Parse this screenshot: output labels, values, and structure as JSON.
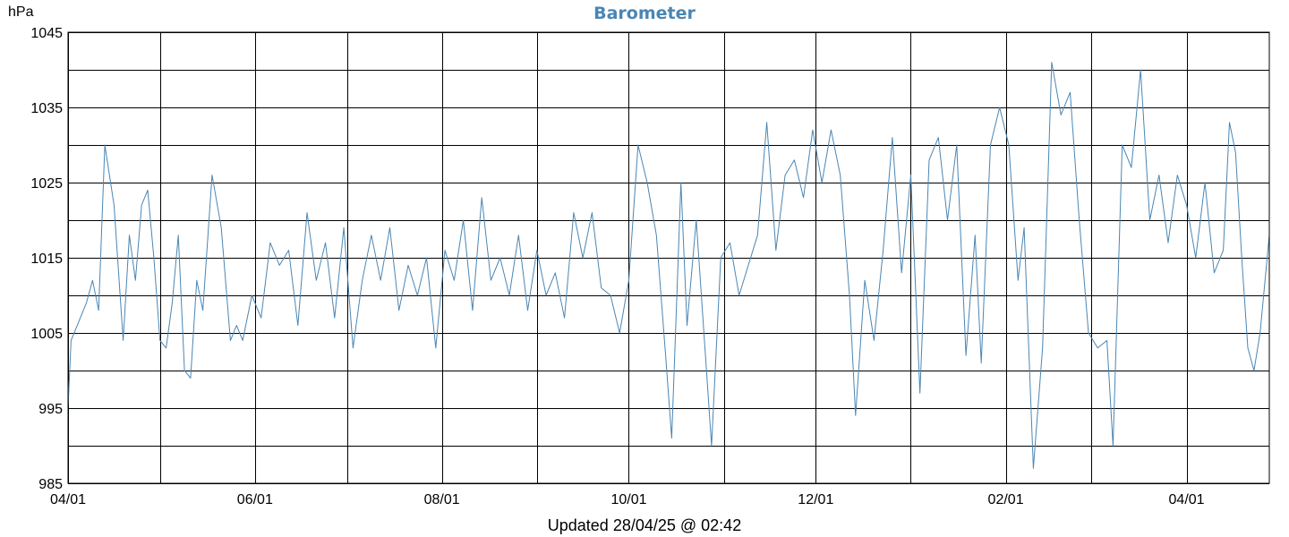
{
  "colors": {
    "line": "#4a86b4",
    "title": "#4a86b4",
    "grid": "#000000"
  },
  "chart_data": {
    "type": "line",
    "title": "Barometer",
    "ylabel": "hPa",
    "xlabel": "",
    "footer": "Updated 28/04/25 @ 02:42",
    "ylim": [
      985,
      1045
    ],
    "yticks": [
      985,
      995,
      1005,
      1015,
      1025,
      1035,
      1045
    ],
    "x_range_dates": [
      "2024-04-01",
      "2025-04-28"
    ],
    "x_tick_months": [
      "2024-04-01",
      "2024-05-01",
      "2024-06-01",
      "2024-07-01",
      "2024-08-01",
      "2024-09-01",
      "2024-10-01",
      "2024-11-01",
      "2024-12-01",
      "2025-01-01",
      "2025-02-01",
      "2025-03-01",
      "2025-04-01"
    ],
    "x_tick_labels": [
      "04/01",
      "",
      "06/01",
      "",
      "08/01",
      "",
      "10/01",
      "",
      "12/01",
      "",
      "02/01",
      "",
      "04/01"
    ],
    "grid": true,
    "series": [
      {
        "name": "",
        "points": [
          [
            "2024-04-01",
            995
          ],
          [
            "2024-04-02",
            1004
          ],
          [
            "2024-04-04",
            1006
          ],
          [
            "2024-04-07",
            1009
          ],
          [
            "2024-04-09",
            1012
          ],
          [
            "2024-04-11",
            1008
          ],
          [
            "2024-04-13",
            1030
          ],
          [
            "2024-04-16",
            1022
          ],
          [
            "2024-04-19",
            1004
          ],
          [
            "2024-04-21",
            1018
          ],
          [
            "2024-04-23",
            1012
          ],
          [
            "2024-04-25",
            1022
          ],
          [
            "2024-04-27",
            1024
          ],
          [
            "2024-04-29",
            1015
          ],
          [
            "2024-05-01",
            1004
          ],
          [
            "2024-05-03",
            1003
          ],
          [
            "2024-05-05",
            1009
          ],
          [
            "2024-05-07",
            1018
          ],
          [
            "2024-05-09",
            1000
          ],
          [
            "2024-05-11",
            999
          ],
          [
            "2024-05-13",
            1012
          ],
          [
            "2024-05-15",
            1008
          ],
          [
            "2024-05-18",
            1026
          ],
          [
            "2024-05-21",
            1019
          ],
          [
            "2024-05-24",
            1004
          ],
          [
            "2024-05-26",
            1006
          ],
          [
            "2024-05-28",
            1004
          ],
          [
            "2024-05-31",
            1010
          ],
          [
            "2024-06-03",
            1007
          ],
          [
            "2024-06-06",
            1017
          ],
          [
            "2024-06-09",
            1014
          ],
          [
            "2024-06-12",
            1016
          ],
          [
            "2024-06-15",
            1006
          ],
          [
            "2024-06-18",
            1021
          ],
          [
            "2024-06-21",
            1012
          ],
          [
            "2024-06-24",
            1017
          ],
          [
            "2024-06-27",
            1007
          ],
          [
            "2024-06-30",
            1019
          ],
          [
            "2024-07-03",
            1003
          ],
          [
            "2024-07-06",
            1012
          ],
          [
            "2024-07-09",
            1018
          ],
          [
            "2024-07-12",
            1012
          ],
          [
            "2024-07-15",
            1019
          ],
          [
            "2024-07-18",
            1008
          ],
          [
            "2024-07-21",
            1014
          ],
          [
            "2024-07-24",
            1010
          ],
          [
            "2024-07-27",
            1015
          ],
          [
            "2024-07-30",
            1003
          ],
          [
            "2024-08-02",
            1016
          ],
          [
            "2024-08-05",
            1012
          ],
          [
            "2024-08-08",
            1020
          ],
          [
            "2024-08-11",
            1008
          ],
          [
            "2024-08-14",
            1023
          ],
          [
            "2024-08-17",
            1012
          ],
          [
            "2024-08-20",
            1015
          ],
          [
            "2024-08-23",
            1010
          ],
          [
            "2024-08-26",
            1018
          ],
          [
            "2024-08-29",
            1008
          ],
          [
            "2024-09-01",
            1016
          ],
          [
            "2024-09-04",
            1010
          ],
          [
            "2024-09-07",
            1013
          ],
          [
            "2024-09-10",
            1007
          ],
          [
            "2024-09-13",
            1021
          ],
          [
            "2024-09-16",
            1015
          ],
          [
            "2024-09-19",
            1021
          ],
          [
            "2024-09-22",
            1011
          ],
          [
            "2024-09-25",
            1010
          ],
          [
            "2024-09-28",
            1005
          ],
          [
            "2024-10-01",
            1012
          ],
          [
            "2024-10-04",
            1030
          ],
          [
            "2024-10-07",
            1025
          ],
          [
            "2024-10-10",
            1018
          ],
          [
            "2024-10-13",
            1002
          ],
          [
            "2024-10-15",
            991
          ],
          [
            "2024-10-18",
            1025
          ],
          [
            "2024-10-20",
            1006
          ],
          [
            "2024-10-23",
            1020
          ],
          [
            "2024-10-26",
            1002
          ],
          [
            "2024-10-28",
            990
          ],
          [
            "2024-10-31",
            1015
          ],
          [
            "2024-11-03",
            1017
          ],
          [
            "2024-11-06",
            1010
          ],
          [
            "2024-11-09",
            1014
          ],
          [
            "2024-11-12",
            1018
          ],
          [
            "2024-11-15",
            1033
          ],
          [
            "2024-11-18",
            1016
          ],
          [
            "2024-11-21",
            1026
          ],
          [
            "2024-11-24",
            1028
          ],
          [
            "2024-11-27",
            1023
          ],
          [
            "2024-11-30",
            1032
          ],
          [
            "2024-12-03",
            1025
          ],
          [
            "2024-12-06",
            1032
          ],
          [
            "2024-12-09",
            1026
          ],
          [
            "2024-12-12",
            1010
          ],
          [
            "2024-12-14",
            994
          ],
          [
            "2024-12-17",
            1012
          ],
          [
            "2024-12-20",
            1004
          ],
          [
            "2024-12-23",
            1016
          ],
          [
            "2024-12-26",
            1031
          ],
          [
            "2024-12-29",
            1013
          ],
          [
            "2025-01-01",
            1026
          ],
          [
            "2025-01-04",
            997
          ],
          [
            "2025-01-07",
            1028
          ],
          [
            "2025-01-10",
            1031
          ],
          [
            "2025-01-13",
            1020
          ],
          [
            "2025-01-16",
            1030
          ],
          [
            "2025-01-19",
            1002
          ],
          [
            "2025-01-22",
            1018
          ],
          [
            "2025-01-24",
            1001
          ],
          [
            "2025-01-27",
            1030
          ],
          [
            "2025-01-30",
            1035
          ],
          [
            "2025-02-02",
            1030
          ],
          [
            "2025-02-05",
            1012
          ],
          [
            "2025-02-07",
            1019
          ],
          [
            "2025-02-10",
            987
          ],
          [
            "2025-02-13",
            1003
          ],
          [
            "2025-02-16",
            1041
          ],
          [
            "2025-02-19",
            1034
          ],
          [
            "2025-02-22",
            1037
          ],
          [
            "2025-02-25",
            1020
          ],
          [
            "2025-02-28",
            1005
          ],
          [
            "2025-03-03",
            1003
          ],
          [
            "2025-03-06",
            1004
          ],
          [
            "2025-03-08",
            990
          ],
          [
            "2025-03-11",
            1030
          ],
          [
            "2025-03-14",
            1027
          ],
          [
            "2025-03-17",
            1040
          ],
          [
            "2025-03-20",
            1020
          ],
          [
            "2025-03-23",
            1026
          ],
          [
            "2025-03-26",
            1017
          ],
          [
            "2025-03-29",
            1026
          ],
          [
            "2025-04-01",
            1022
          ],
          [
            "2025-04-04",
            1015
          ],
          [
            "2025-04-07",
            1025
          ],
          [
            "2025-04-10",
            1013
          ],
          [
            "2025-04-13",
            1016
          ],
          [
            "2025-04-15",
            1033
          ],
          [
            "2025-04-17",
            1029
          ],
          [
            "2025-04-19",
            1015
          ],
          [
            "2025-04-21",
            1003
          ],
          [
            "2025-04-23",
            1000
          ],
          [
            "2025-04-25",
            1005
          ],
          [
            "2025-04-28",
            1018
          ]
        ]
      }
    ]
  }
}
